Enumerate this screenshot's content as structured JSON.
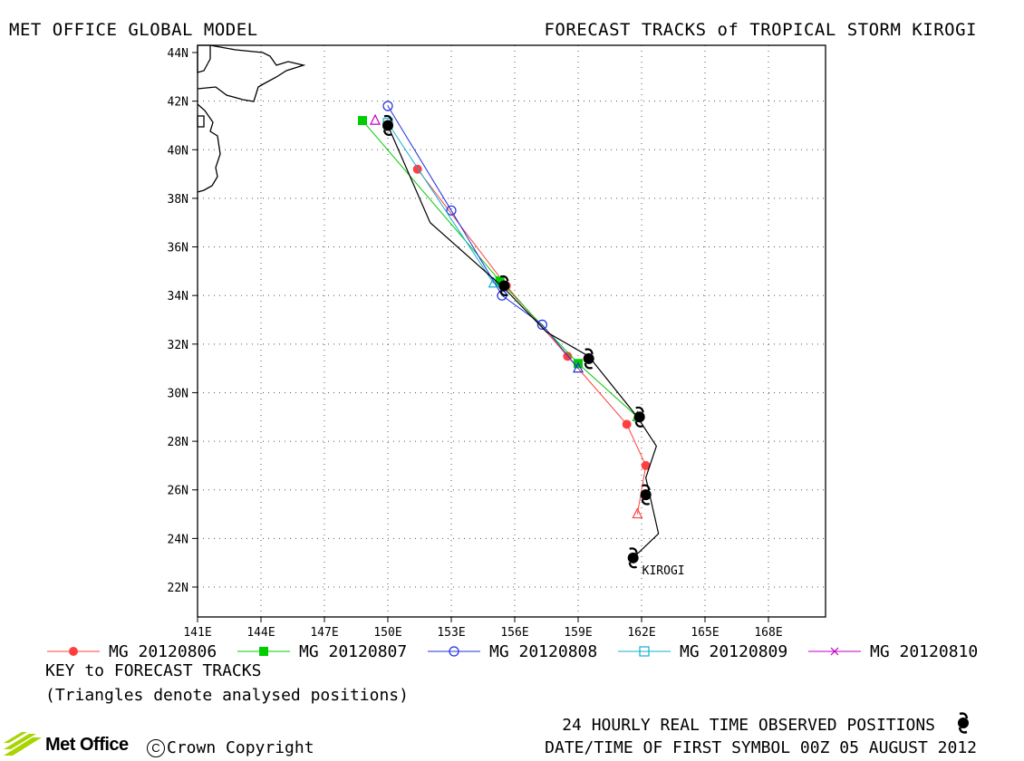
{
  "header": {
    "title_left": "MET OFFICE GLOBAL MODEL",
    "title_right": "FORECAST TRACKS of TROPICAL STORM KIROGI"
  },
  "map": {
    "lon_ticks": [
      "141E",
      "144E",
      "147E",
      "150E",
      "153E",
      "156E",
      "159E",
      "162E",
      "165E",
      "168E"
    ],
    "lat_ticks": [
      "44N",
      "42N",
      "40N",
      "38N",
      "36N",
      "34N",
      "32N",
      "30N",
      "28N",
      "26N",
      "24N",
      "22N"
    ],
    "storm_label": "KIROGI",
    "observed_track": [
      [
        161.6,
        23.2
      ],
      [
        162.8,
        24.2
      ],
      [
        162.2,
        26.5
      ],
      [
        162.7,
        27.8
      ],
      [
        161.8,
        29.0
      ],
      [
        159.5,
        31.5
      ],
      [
        157.5,
        32.5
      ],
      [
        155.5,
        34.3
      ],
      [
        152.0,
        37.0
      ],
      [
        150.0,
        41.0
      ]
    ],
    "observed_positions": [
      [
        161.6,
        23.2
      ],
      [
        162.2,
        25.8
      ],
      [
        161.9,
        29.0
      ],
      [
        159.5,
        31.4
      ],
      [
        155.5,
        34.4
      ],
      [
        150.0,
        41.0
      ]
    ],
    "line_observed_color": "#000000"
  },
  "legend": {
    "items": [
      {
        "label": "MG 20120806",
        "color": "#ff4040",
        "marker": "filled-circle"
      },
      {
        "label": "MG 20120807",
        "color": "#00cc00",
        "marker": "filled-square"
      },
      {
        "label": "MG 20120808",
        "color": "#2030e0",
        "marker": "open-circle"
      },
      {
        "label": "MG 20120809",
        "color": "#10b0d0",
        "marker": "open-square"
      },
      {
        "label": "MG 20120810",
        "color": "#c000c0",
        "marker": "cross"
      }
    ],
    "key_title": "KEY to FORECAST TRACKS",
    "key_note": "(Triangles denote analysed positions)"
  },
  "tracks": [
    {
      "color": "#ff4040",
      "marker": "filled-circle",
      "points": [
        [
          161.8,
          25.0
        ],
        [
          162.2,
          27.0
        ],
        [
          161.3,
          28.7
        ],
        [
          158.5,
          31.5
        ],
        [
          155.6,
          34.4
        ],
        [
          151.4,
          39.2
        ]
      ],
      "analysed": [
        161.8,
        25.0
      ]
    },
    {
      "color": "#00cc00",
      "marker": "filled-square",
      "points": [
        [
          161.8,
          29.0
        ],
        [
          159.0,
          31.2
        ],
        [
          155.3,
          34.6
        ],
        [
          148.8,
          41.2
        ]
      ],
      "analysed": [
        161.8,
        29.0
      ]
    },
    {
      "color": "#2030e0",
      "marker": "open-circle",
      "points": [
        [
          159.0,
          31.0
        ],
        [
          157.3,
          32.8
        ],
        [
          155.4,
          34.0
        ],
        [
          153.0,
          37.5
        ],
        [
          150.0,
          41.8
        ]
      ],
      "analysed": [
        159.0,
        31.0
      ]
    },
    {
      "color": "#10b0d0",
      "marker": "open-square",
      "points": [
        [
          155.0,
          34.5
        ],
        [
          150.0,
          41.1
        ]
      ],
      "analysed": [
        155.0,
        34.5
      ]
    },
    {
      "color": "#c000c0",
      "marker": "cross",
      "points": [
        [
          149.4,
          41.2
        ]
      ],
      "analysed": [
        149.4,
        41.2
      ]
    }
  ],
  "footer": {
    "observed_label": "24 HOURLY REAL TIME OBSERVED POSITIONS",
    "first_symbol_label": "DATE/TIME OF FIRST SYMBOL 00Z 05 AUGUST 2012",
    "copyright": "Crown Copyright",
    "copyright_mark": "C",
    "logo_text": "Met Office"
  }
}
